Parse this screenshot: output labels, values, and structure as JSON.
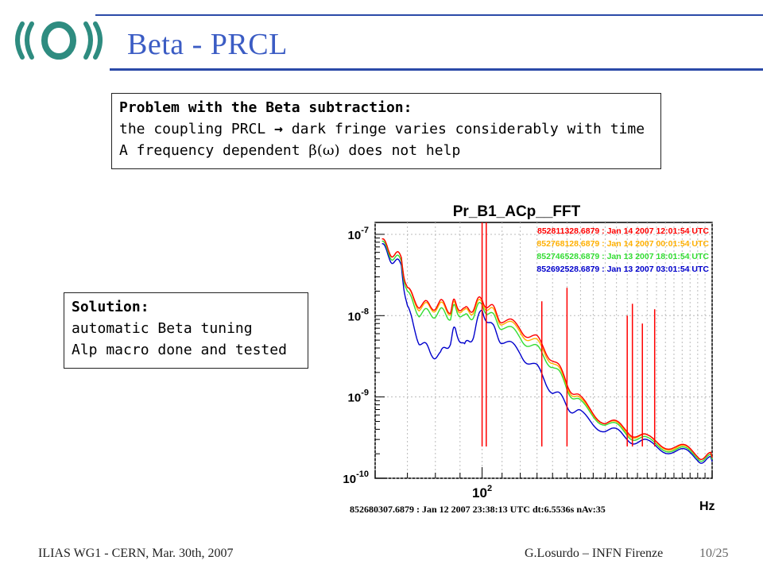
{
  "slide": {
    "title": "Beta - PRCL",
    "footer_left": "ILIAS WG1 - CERN, Mar. 30th, 2007",
    "footer_right": "G.Losurdo – INFN Firenze",
    "page": "10/25"
  },
  "box_problem": {
    "line1": "Problem with the Beta subtraction:",
    "line2_a": "the coupling PRCL",
    "line2_arrow": "→",
    "line2_b": " dark fringe varies considerably with time",
    "line3_a": "A frequency dependent  ",
    "line3_greek": "β(ω)",
    "line3_b": "  does not help"
  },
  "box_solution": {
    "line1": "Solution:",
    "line2": "automatic Beta tuning",
    "line3": "Alp macro done and tested"
  },
  "colors": {
    "accent": "#3b5cc4",
    "rule": "#2b4aa8",
    "logo": "#2e8c80",
    "series_red": "#ff0000",
    "series_orange": "#ffb000",
    "series_green": "#33dd33",
    "series_blue": "#0000cc"
  },
  "chart_data": {
    "type": "line",
    "title": "Pr_B1_ACp__FFT",
    "xlabel": "Hz",
    "ylabel": "",
    "x_scale": "log",
    "y_scale": "log",
    "xlim": [
      60,
      300
    ],
    "ylim": [
      1e-10,
      1.4e-07
    ],
    "ytick_labels": [
      "10-7",
      "10-8",
      "10-9",
      "10-10"
    ],
    "xtick_labels": [
      "10 2"
    ],
    "grid": true,
    "legend_position": "top-right",
    "footer": "852680307.6879 : Jan 12 2007 23:38:13 UTC dt:6.5536s nAv:35",
    "series": [
      {
        "name": "852811328.6879 : Jan 14 2007 12:01:54 UTC",
        "color": "#ff0000",
        "x": [
          62,
          65,
          68,
          70,
          74,
          78,
          82,
          86,
          88,
          92,
          96,
          100,
          105,
          110,
          120,
          130,
          140,
          150,
          160,
          180,
          200,
          220,
          250,
          280,
          300
        ],
        "y": [
          8e-08,
          6e-08,
          5e-08,
          2e-08,
          1.4e-08,
          1.3e-08,
          1.4e-08,
          1.2e-08,
          1.5e-08,
          1.1e-08,
          1.3e-08,
          1.6e-08,
          1.2e-08,
          9e-09,
          7e-09,
          5e-09,
          3e-09,
          1.5e-09,
          9e-10,
          5e-10,
          4e-10,
          3e-10,
          2.5e-10,
          2e-10,
          1.8e-10
        ]
      },
      {
        "name": "852768128.6879 : Jan 14 2007 00:01:54 UTC",
        "color": "#ffb000",
        "x": [
          62,
          65,
          68,
          70,
          74,
          78,
          82,
          86,
          88,
          92,
          96,
          100,
          105,
          110,
          120,
          130,
          140,
          150,
          160,
          180,
          200,
          220,
          250,
          280,
          300
        ],
        "y": [
          8e-08,
          6e-08,
          5e-08,
          2e-08,
          1.3e-08,
          1.25e-08,
          1.3e-08,
          1.15e-08,
          1.4e-08,
          1.05e-08,
          1.2e-08,
          1.5e-08,
          1.1e-08,
          8.5e-09,
          6.5e-09,
          4.5e-09,
          2.8e-09,
          1.4e-09,
          8.5e-10,
          5e-10,
          3.8e-10,
          3e-10,
          2.4e-10,
          2e-10,
          1.8e-10
        ]
      },
      {
        "name": "852746528.6879 : Jan 13 2007 18:01:54 UTC",
        "color": "#33dd33",
        "x": [
          62,
          65,
          68,
          70,
          74,
          78,
          82,
          86,
          88,
          92,
          96,
          100,
          105,
          110,
          120,
          130,
          140,
          150,
          160,
          180,
          200,
          220,
          250,
          280,
          300
        ],
        "y": [
          7.5e-08,
          5.5e-08,
          4.5e-08,
          1.8e-08,
          1.1e-08,
          1.05e-08,
          1.1e-08,
          1e-08,
          1.3e-08,
          9e-09,
          1.05e-08,
          1.4e-08,
          9.5e-09,
          7.5e-09,
          5.5e-09,
          3.8e-09,
          2.5e-09,
          1.3e-09,
          8e-10,
          4.8e-10,
          3.6e-10,
          2.8e-10,
          2.3e-10,
          1.9e-10,
          1.7e-10
        ]
      },
      {
        "name": "852692528.6879 : Jan 13 2007 03:01:54 UTC",
        "color": "#0000cc",
        "x": [
          62,
          65,
          68,
          70,
          74,
          78,
          82,
          86,
          88,
          92,
          96,
          100,
          105,
          110,
          120,
          130,
          140,
          150,
          160,
          180,
          200,
          220,
          250,
          280,
          300
        ],
        "y": [
          7e-08,
          5e-08,
          4e-08,
          1.2e-08,
          5e-09,
          3.5e-09,
          3.2e-09,
          5e-09,
          7e-09,
          4e-09,
          6e-09,
          1.2e-08,
          7e-09,
          5e-09,
          3.5e-09,
          2.2e-09,
          1.2e-09,
          8e-10,
          6e-10,
          4e-10,
          3.2e-10,
          2.6e-10,
          2.2e-10,
          1.8e-10,
          1.6e-10
        ]
      }
    ],
    "peaks": [
      {
        "x": 100,
        "y": 1.4e-07
      },
      {
        "x": 102,
        "y": 1.4e-07
      },
      {
        "x": 133,
        "y": 1.5e-08
      },
      {
        "x": 150,
        "y": 2.2e-08
      },
      {
        "x": 200,
        "y": 1e-08
      },
      {
        "x": 205,
        "y": 1.4e-08
      },
      {
        "x": 215,
        "y": 8e-09
      },
      {
        "x": 228,
        "y": 1.2e-08
      }
    ]
  }
}
